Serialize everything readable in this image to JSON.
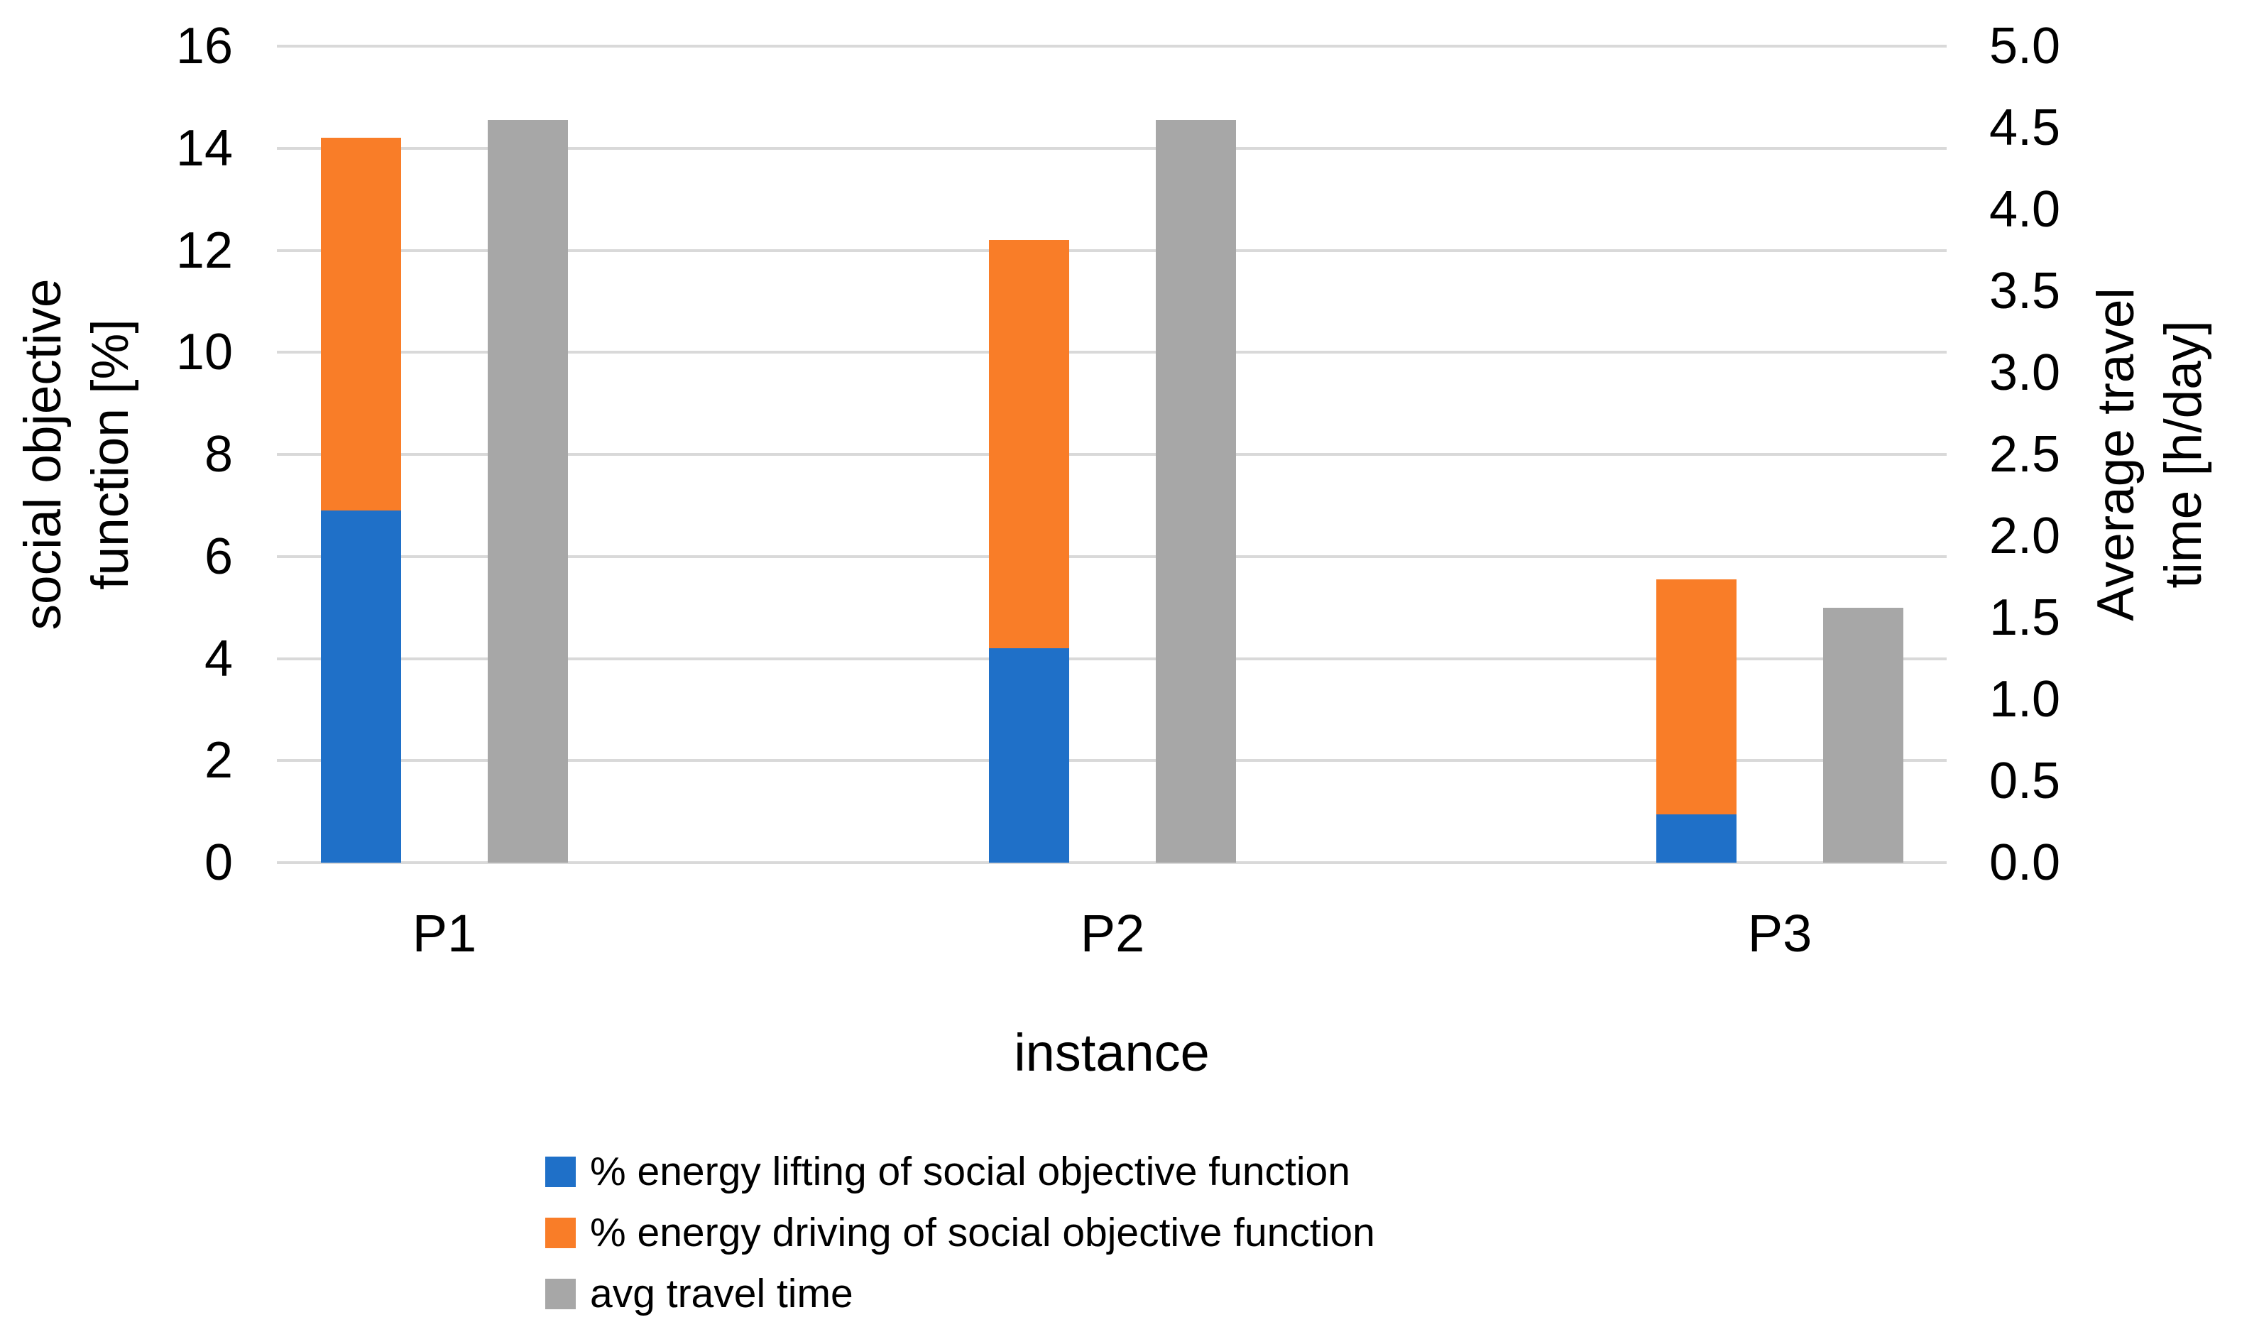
{
  "chart_data": {
    "type": "bar",
    "title": "",
    "categories": [
      "P1",
      "P2",
      "P3"
    ],
    "series": [
      {
        "name": "% energy lifting of social objective function",
        "color": "#1F70C8",
        "axis": "left",
        "stack": "social",
        "values": [
          6.9,
          4.2,
          0.95
        ]
      },
      {
        "name": "% energy driving of social objective function",
        "color": "#F97D28",
        "axis": "left",
        "stack": "social",
        "values": [
          7.3,
          8.0,
          4.6
        ]
      },
      {
        "name": "avg travel time",
        "color": "#A7A7A7",
        "axis": "right",
        "stack": null,
        "values": [
          4.55,
          4.55,
          1.56
        ]
      }
    ],
    "stack_totals_left_axis": [
      14.2,
      12.2,
      5.55
    ],
    "left_axis": {
      "title_lines": [
        "social objective",
        "function [%]"
      ],
      "min": 0,
      "max": 16,
      "step": 2,
      "tick_labels": [
        "0",
        "2",
        "4",
        "6",
        "8",
        "10",
        "12",
        "14",
        "16"
      ]
    },
    "right_axis": {
      "title_lines": [
        "Average travel",
        "time [h/day]"
      ],
      "min": 0,
      "max": 5,
      "step": 0.5,
      "tick_labels": [
        "0.0",
        "0.5",
        "1.0",
        "1.5",
        "2.0",
        "2.5",
        "3.0",
        "3.5",
        "4.0",
        "4.5",
        "5.0"
      ]
    },
    "x_axis": {
      "title": "instance",
      "tick_labels": [
        "P1",
        "P2",
        "P3"
      ]
    },
    "grid": {
      "horizontal": true,
      "color": "#D9D9D9"
    },
    "legend_position": "bottom-left",
    "background": "#FFFFFF",
    "text_color": "#000000"
  }
}
